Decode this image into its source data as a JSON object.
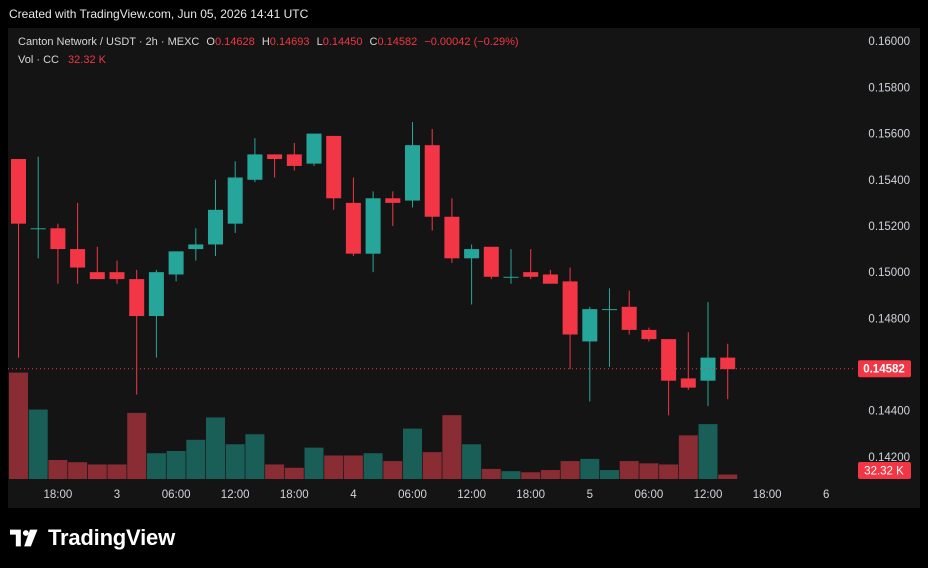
{
  "banner": "Created with TradingView.com, Jun 05, 2026 14:41 UTC",
  "legend": {
    "symbol": "Canton Network / USDT · 2h · MEXC",
    "o_label": "O",
    "o_value": "0.14628",
    "h_label": "H",
    "h_value": "0.14693",
    "l_label": "L",
    "l_value": "0.14450",
    "c_label": "C",
    "c_value": "0.14582",
    "change": "−0.00042 (−0.29%)",
    "vol_label": "Vol · CC",
    "vol_value": "32.32 K"
  },
  "price_badge": "0.14582",
  "volume_badge": "32.32 K",
  "brand": {
    "name": "TradingView",
    "logo_icon": "tradingview-logo-icon"
  },
  "colors": {
    "up": "#26a69a",
    "down": "#f23645",
    "vol_up": "#1a5e58",
    "vol_down": "#8a2c33"
  },
  "chart_data": {
    "type": "candlestick",
    "ylim": [
      0.141,
      0.1604
    ],
    "y_ticks": [
      "0.16000",
      "0.15800",
      "0.15600",
      "0.15400",
      "0.15200",
      "0.15000",
      "0.14800",
      "0.14400",
      "0.14200"
    ],
    "x_tick_labels": [
      {
        "label": "18:00",
        "index": 2
      },
      {
        "label": "3",
        "index": 5
      },
      {
        "label": "06:00",
        "index": 8
      },
      {
        "label": "12:00",
        "index": 11
      },
      {
        "label": "18:00",
        "index": 14
      },
      {
        "label": "4",
        "index": 17
      },
      {
        "label": "06:00",
        "index": 20
      },
      {
        "label": "12:00",
        "index": 23
      },
      {
        "label": "18:00",
        "index": 26
      },
      {
        "label": "5",
        "index": 29
      },
      {
        "label": "06:00",
        "index": 32
      },
      {
        "label": "12:00",
        "index": 35
      },
      {
        "label": "18:00",
        "index": 38
      },
      {
        "label": "6",
        "index": 41
      }
    ],
    "last_price": 0.14582,
    "candles": [
      {
        "o": 0.1549,
        "h": 0.1549,
        "l": 0.1463,
        "c": 0.1521,
        "v": 0.95
      },
      {
        "o": 0.1519,
        "h": 0.155,
        "l": 0.1506,
        "c": 0.1519,
        "v": 0.62
      },
      {
        "o": 0.1519,
        "h": 0.1521,
        "l": 0.1495,
        "c": 0.151,
        "v": 0.17
      },
      {
        "o": 0.151,
        "h": 0.153,
        "l": 0.1495,
        "c": 0.1502,
        "v": 0.15
      },
      {
        "o": 0.15,
        "h": 0.1511,
        "l": 0.1497,
        "c": 0.1497,
        "v": 0.13
      },
      {
        "o": 0.15,
        "h": 0.1505,
        "l": 0.1495,
        "c": 0.1497,
        "v": 0.13
      },
      {
        "o": 0.1497,
        "h": 0.1501,
        "l": 0.1447,
        "c": 0.1481,
        "v": 0.59
      },
      {
        "o": 0.1481,
        "h": 0.1501,
        "l": 0.1463,
        "c": 0.15,
        "v": 0.23
      },
      {
        "o": 0.1499,
        "h": 0.1509,
        "l": 0.1496,
        "c": 0.1509,
        "v": 0.25
      },
      {
        "o": 0.151,
        "h": 0.1519,
        "l": 0.1505,
        "c": 0.1512,
        "v": 0.35
      },
      {
        "o": 0.1512,
        "h": 0.154,
        "l": 0.1507,
        "c": 0.1527,
        "v": 0.55
      },
      {
        "o": 0.1521,
        "h": 0.1548,
        "l": 0.1517,
        "c": 0.1541,
        "v": 0.31
      },
      {
        "o": 0.154,
        "h": 0.1558,
        "l": 0.1539,
        "c": 0.1551,
        "v": 0.4
      },
      {
        "o": 0.1551,
        "h": 0.1551,
        "l": 0.1541,
        "c": 0.1549,
        "v": 0.13
      },
      {
        "o": 0.1551,
        "h": 0.1556,
        "l": 0.1544,
        "c": 0.1546,
        "v": 0.1
      },
      {
        "o": 0.1547,
        "h": 0.156,
        "l": 0.1546,
        "c": 0.156,
        "v": 0.28
      },
      {
        "o": 0.1559,
        "h": 0.1559,
        "l": 0.1527,
        "c": 0.1532,
        "v": 0.21
      },
      {
        "o": 0.153,
        "h": 0.1541,
        "l": 0.1507,
        "c": 0.1508,
        "v": 0.21
      },
      {
        "o": 0.1508,
        "h": 0.1535,
        "l": 0.15,
        "c": 0.1532,
        "v": 0.23
      },
      {
        "o": 0.1532,
        "h": 0.1535,
        "l": 0.152,
        "c": 0.153,
        "v": 0.16
      },
      {
        "o": 0.1531,
        "h": 0.1565,
        "l": 0.1528,
        "c": 0.1555,
        "v": 0.45
      },
      {
        "o": 0.1555,
        "h": 0.1562,
        "l": 0.1518,
        "c": 0.1524,
        "v": 0.24
      },
      {
        "o": 0.1524,
        "h": 0.1532,
        "l": 0.1504,
        "c": 0.1506,
        "v": 0.57
      },
      {
        "o": 0.1506,
        "h": 0.1512,
        "l": 0.1486,
        "c": 0.151,
        "v": 0.31
      },
      {
        "o": 0.1511,
        "h": 0.1511,
        "l": 0.1497,
        "c": 0.1498,
        "v": 0.09
      },
      {
        "o": 0.1498,
        "h": 0.151,
        "l": 0.1495,
        "c": 0.1498,
        "v": 0.07
      },
      {
        "o": 0.15,
        "h": 0.151,
        "l": 0.1497,
        "c": 0.1498,
        "v": 0.06
      },
      {
        "o": 0.1499,
        "h": 0.1501,
        "l": 0.1495,
        "c": 0.1495,
        "v": 0.08
      },
      {
        "o": 0.1496,
        "h": 0.1502,
        "l": 0.1458,
        "c": 0.1473,
        "v": 0.16
      },
      {
        "o": 0.147,
        "h": 0.1485,
        "l": 0.1444,
        "c": 0.1484,
        "v": 0.18
      },
      {
        "o": 0.1484,
        "h": 0.1493,
        "l": 0.1459,
        "c": 0.1484,
        "v": 0.08
      },
      {
        "o": 0.1485,
        "h": 0.1492,
        "l": 0.1473,
        "c": 0.1475,
        "v": 0.16
      },
      {
        "o": 0.1475,
        "h": 0.1476,
        "l": 0.147,
        "c": 0.1471,
        "v": 0.14
      },
      {
        "o": 0.1471,
        "h": 0.1471,
        "l": 0.1438,
        "c": 0.1453,
        "v": 0.13
      },
      {
        "o": 0.1454,
        "h": 0.1474,
        "l": 0.1449,
        "c": 0.145,
        "v": 0.39
      },
      {
        "o": 0.1453,
        "h": 0.1487,
        "l": 0.1442,
        "c": 0.1463,
        "v": 0.49
      },
      {
        "o": 0.1463,
        "h": 0.1469,
        "l": 0.1445,
        "c": 0.1458,
        "v": 0.04
      }
    ]
  }
}
